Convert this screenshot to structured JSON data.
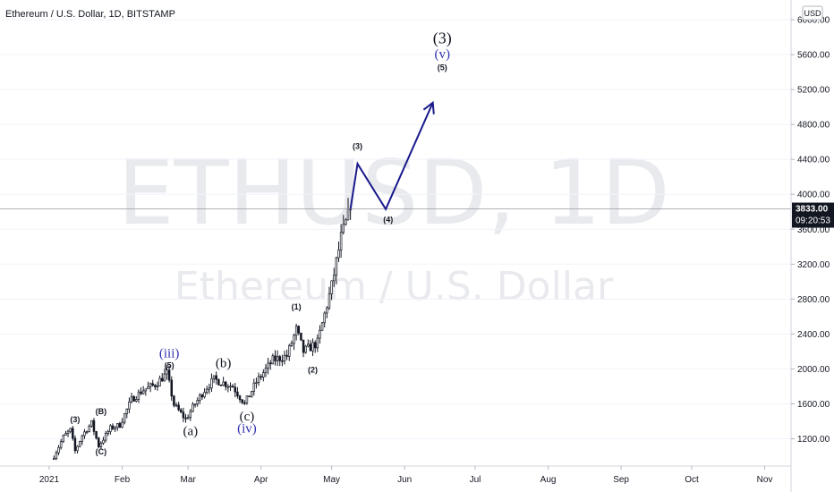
{
  "chart_data": {
    "type": "candlestick",
    "title": "Ethereum / U.S. Dollar, 1D, BITSTAMP",
    "watermark": {
      "symbol": "ETHUSD, 1D",
      "name": "Ethereum / U.S. Dollar"
    },
    "currency_badge": "USD",
    "y_axis": {
      "range": [
        1000,
        6200
      ],
      "ticks": [
        1200,
        1600,
        2000,
        2400,
        2800,
        3200,
        3600,
        4000,
        4400,
        4800,
        5200,
        5600,
        6000
      ],
      "tick_labels": [
        "1200.00",
        "1600.00",
        "2000.00",
        "2400.00",
        "2800.00",
        "3200.00",
        "3600.00",
        "4000.00",
        "4400.00",
        "4800.00",
        "5200.00",
        "5600.00",
        "6000.00"
      ]
    },
    "x_axis": {
      "ticks": [
        "2021-01-01",
        "2021-02-01",
        "2021-03-01",
        "2021-04-01",
        "2021-05-01",
        "2021-06-01",
        "2021-07-01",
        "2021-08-01",
        "2021-09-01",
        "2021-10-01",
        "2021-11-01"
      ],
      "tick_labels": [
        "2021",
        "Feb",
        "Mar",
        "Apr",
        "May",
        "Jun",
        "Jul",
        "Aug",
        "Sep",
        "Oct",
        "Nov"
      ]
    },
    "current_price": {
      "value": 3833.0,
      "label": "3833.00",
      "countdown": "09:20:53"
    },
    "ohlc_anchors": [
      {
        "d": "2021-01-03",
        "c": 1000
      },
      {
        "d": "2021-01-07",
        "c": 1220
      },
      {
        "d": "2021-01-10",
        "c": 1300
      },
      {
        "d": "2021-01-12",
        "c": 1060
      },
      {
        "d": "2021-01-15",
        "c": 1240
      },
      {
        "d": "2021-01-19",
        "c": 1380
      },
      {
        "d": "2021-01-22",
        "c": 1120
      },
      {
        "d": "2021-01-27",
        "c": 1320
      },
      {
        "d": "2021-01-31",
        "c": 1360
      },
      {
        "d": "2021-02-05",
        "c": 1650
      },
      {
        "d": "2021-02-10",
        "c": 1760
      },
      {
        "d": "2021-02-15",
        "c": 1820
      },
      {
        "d": "2021-02-20",
        "c": 1950
      },
      {
        "d": "2021-02-23",
        "c": 1590
      },
      {
        "d": "2021-02-28",
        "c": 1420
      },
      {
        "d": "2021-03-03",
        "c": 1560
      },
      {
        "d": "2021-03-08",
        "c": 1760
      },
      {
        "d": "2021-03-12",
        "c": 1880
      },
      {
        "d": "2021-03-20",
        "c": 1800
      },
      {
        "d": "2021-03-25",
        "c": 1600
      },
      {
        "d": "2021-03-30",
        "c": 1850
      },
      {
        "d": "2021-04-06",
        "c": 2100
      },
      {
        "d": "2021-04-12",
        "c": 2150
      },
      {
        "d": "2021-04-16",
        "c": 2450
      },
      {
        "d": "2021-04-19",
        "c": 2200
      },
      {
        "d": "2021-04-25",
        "c": 2300
      },
      {
        "d": "2021-05-01",
        "c": 2950
      },
      {
        "d": "2021-05-05",
        "c": 3500
      },
      {
        "d": "2021-05-09",
        "c": 3833
      }
    ],
    "projection": {
      "color": "#1a1a8c",
      "points": [
        {
          "d": "2021-05-09",
          "v": 3833
        },
        {
          "d": "2021-05-12",
          "v": 4350
        },
        {
          "d": "2021-05-24",
          "v": 3830
        },
        {
          "d": "2021-06-13",
          "v": 5050
        }
      ]
    },
    "wave_labels": [
      {
        "text": "(3)",
        "d": "2021-01-12",
        "v": 1390,
        "style": "sm"
      },
      {
        "text": "(B)",
        "d": "2021-01-23",
        "v": 1480,
        "style": "sm"
      },
      {
        "text": "(C)",
        "d": "2021-01-23",
        "v": 1020,
        "style": "sm"
      },
      {
        "text": "(iii)",
        "d": "2021-02-21",
        "v": 2130,
        "style": "blue"
      },
      {
        "text": "(5)",
        "d": "2021-02-21",
        "v": 2010,
        "style": "sm"
      },
      {
        "text": "(a)",
        "d": "2021-03-02",
        "v": 1240,
        "style": "md"
      },
      {
        "text": "(b)",
        "d": "2021-03-16",
        "v": 2020,
        "style": "md"
      },
      {
        "text": "(c)",
        "d": "2021-03-26",
        "v": 1410,
        "style": "md"
      },
      {
        "text": "(iv)",
        "d": "2021-03-26",
        "v": 1270,
        "style": "blue"
      },
      {
        "text": "(1)",
        "d": "2021-04-16",
        "v": 2680,
        "style": "sm"
      },
      {
        "text": "(2)",
        "d": "2021-04-23",
        "v": 1960,
        "style": "sm"
      },
      {
        "text": "(3)",
        "d": "2021-05-12",
        "v": 4520,
        "style": "sm"
      },
      {
        "text": "(4)",
        "d": "2021-05-25",
        "v": 3680,
        "style": "sm"
      },
      {
        "text": "(3)",
        "d": "2021-06-17",
        "v": 5730,
        "style": "lg"
      },
      {
        "text": "(v)",
        "d": "2021-06-17",
        "v": 5560,
        "style": "blue"
      },
      {
        "text": "(5)",
        "d": "2021-06-17",
        "v": 5420,
        "style": "sm"
      }
    ],
    "colors": {
      "candle": "#131722",
      "grid": "#f0f3fa",
      "price_line": "#9598a1",
      "axis_text": "#131722",
      "watermark": "#e9eaee",
      "wave_blue": "#3030b0"
    }
  }
}
